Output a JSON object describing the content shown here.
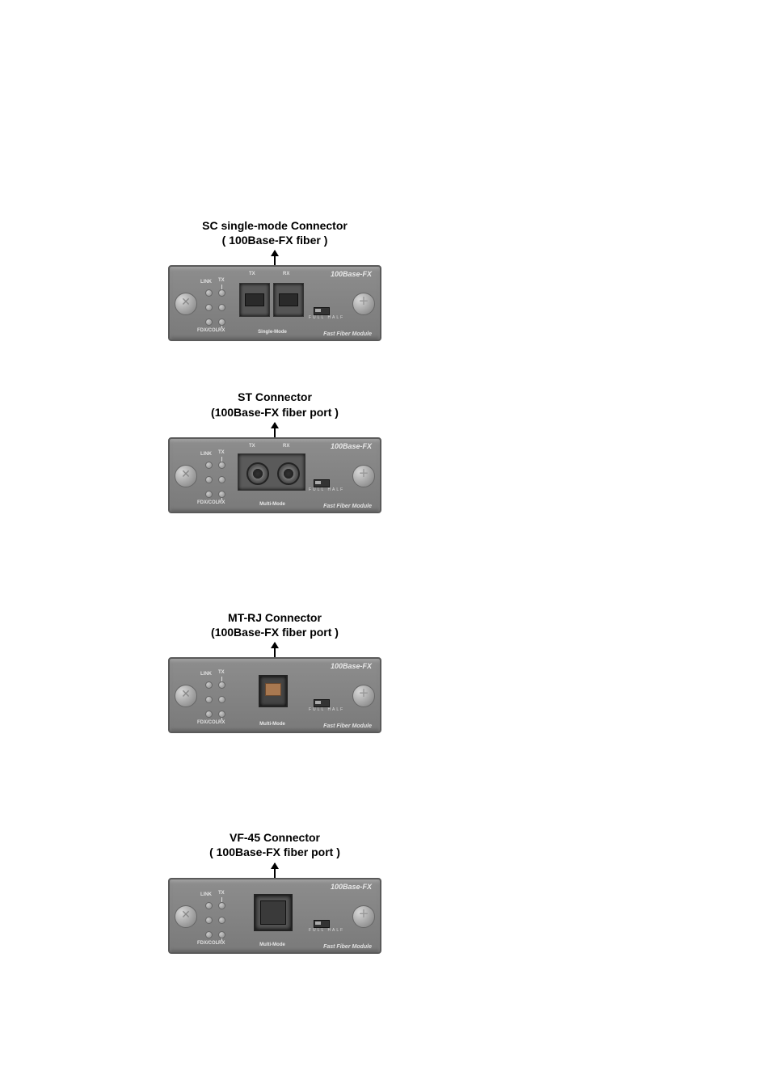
{
  "modules": [
    {
      "caption_line1": "SC single-mode Connector",
      "caption_line2": "( 100Base-FX fiber )",
      "top_right": "100Base-FX",
      "bottom_right": "Fast Fiber Module",
      "mode_label": "Single-Mode",
      "port_tx": "TX",
      "port_rx": "RX",
      "led_tx": "TX",
      "led_rx": "RX",
      "link": "LINK",
      "fdx": "FDX/COL",
      "dip_full": "FULL",
      "dip_half": "HALF",
      "port_type": "sc"
    },
    {
      "caption_line1": "ST Connector",
      "caption_line2": "(100Base-FX fiber port )",
      "top_right": "100Base-FX",
      "bottom_right": "Fast Fiber Module",
      "mode_label": "Multi-Mode",
      "port_tx": "TX",
      "port_rx": "RX",
      "led_tx": "TX",
      "led_rx": "RX",
      "link": "LINK",
      "fdx": "FDX/COL",
      "dip_full": "FULL",
      "dip_half": "HALF",
      "port_type": "st"
    },
    {
      "caption_line1": "MT-RJ Connector",
      "caption_line2": "(100Base-FX fiber port )",
      "top_right": "100Base-FX",
      "bottom_right": "Fast Fiber Module",
      "mode_label": "Multi-Mode",
      "port_tx": "",
      "port_rx": "",
      "led_tx": "TX",
      "led_rx": "RX",
      "link": "LINK",
      "fdx": "FDX/COL",
      "dip_full": "FULL",
      "dip_half": "HALF",
      "port_type": "mtrj"
    },
    {
      "caption_line1": "VF-45 Connector",
      "caption_line2": "( 100Base-FX fiber port )",
      "top_right": "100Base-FX",
      "bottom_right": "Fast Fiber Module",
      "mode_label": "Multi-Mode",
      "port_tx": "",
      "port_rx": "",
      "led_tx": "TX",
      "led_rx": "RX",
      "link": "LINK",
      "fdx": "FDX/COL",
      "dip_full": "FULL",
      "dip_half": "HALF",
      "port_type": "vf45"
    }
  ],
  "colors": {
    "module_bg": "#7f7f7f",
    "text_light": "#e8e8e8",
    "caption_text": "#000000"
  }
}
